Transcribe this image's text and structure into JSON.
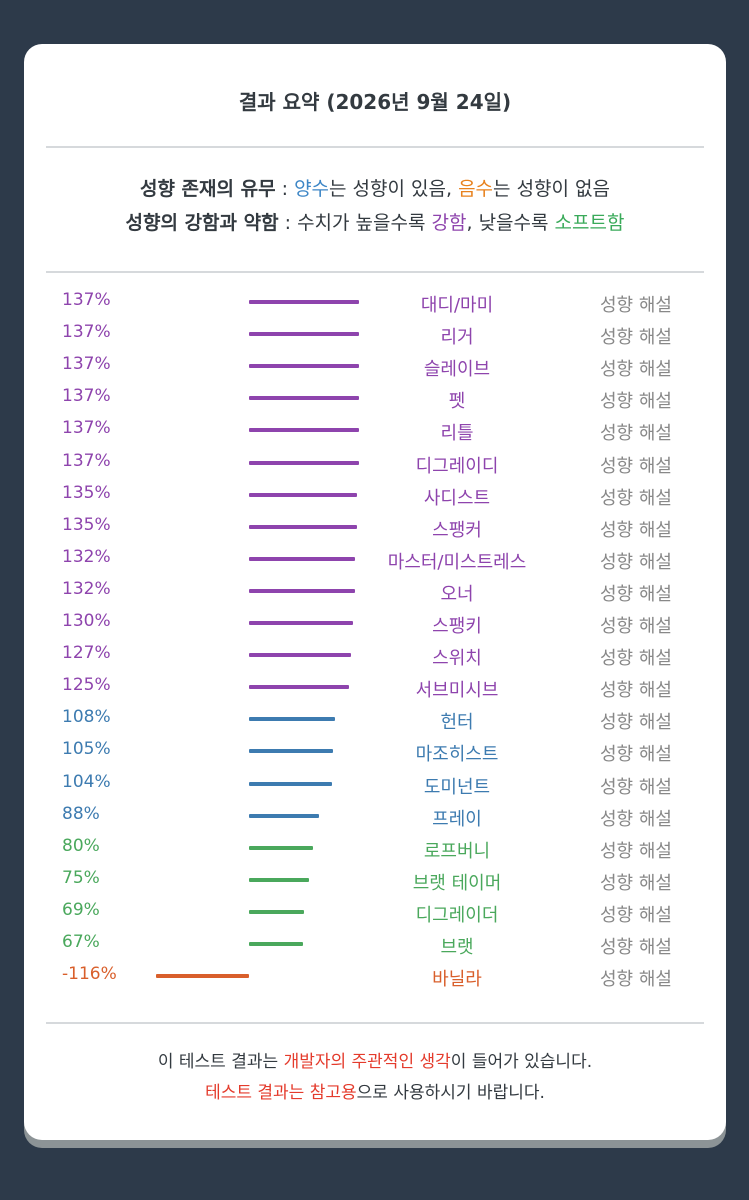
{
  "title": "결과 요약 (2026년 9월 24일)",
  "legend": {
    "line1": {
      "label": "성향 존재의 유무",
      "sep": " : ",
      "pos_word": "양수",
      "pos_rest": "는 성향이 있음, ",
      "neg_word": "음수",
      "neg_rest": "는 성향이 없음"
    },
    "line2": {
      "label": "성향의 강함과 약함",
      "sep": " : ",
      "pre": "수치가 높을수록 ",
      "strong_word": "강함",
      "mid": ", 낮을수록 ",
      "soft_word": "소프트함"
    }
  },
  "explain_label": "성향 해설",
  "colors": {
    "purple": "#8e44ad",
    "blue": "#3d7bb0",
    "green": "#4aa85c",
    "orange": "#d95f2b"
  },
  "chart_data": {
    "type": "bar",
    "categories": [
      "대디/마미",
      "리거",
      "슬레이브",
      "펫",
      "리틀",
      "디그레이디",
      "사디스트",
      "스팽커",
      "마스터/미스트레스",
      "오너",
      "스팽키",
      "스위치",
      "서브미시브",
      "헌터",
      "마조히스트",
      "도미넌트",
      "프레이",
      "로프버니",
      "브랫 테이머",
      "디그레이더",
      "브랫",
      "바닐라"
    ],
    "labels": [
      "137%",
      "137%",
      "137%",
      "137%",
      "137%",
      "137%",
      "135%",
      "135%",
      "132%",
      "132%",
      "130%",
      "127%",
      "125%",
      "108%",
      "105%",
      "104%",
      "88%",
      "80%",
      "75%",
      "69%",
      "67%",
      "-116%"
    ],
    "values": [
      137,
      137,
      137,
      137,
      137,
      137,
      135,
      135,
      132,
      132,
      130,
      127,
      125,
      108,
      105,
      104,
      88,
      80,
      75,
      69,
      67,
      -116
    ],
    "color_groups": [
      "purple",
      "purple",
      "purple",
      "purple",
      "purple",
      "purple",
      "purple",
      "purple",
      "purple",
      "purple",
      "purple",
      "purple",
      "purple",
      "blue",
      "blue",
      "blue",
      "blue",
      "green",
      "green",
      "green",
      "green",
      "orange"
    ]
  },
  "footer": {
    "line1": {
      "pre": "이 테스트 결과는 ",
      "highlight": "개발자의 주관적인 생각",
      "post": "이 들어가 있습니다."
    },
    "line2": {
      "highlight": "테스트 결과는 참고용",
      "post": "으로 사용하시기 바랍니다."
    }
  }
}
